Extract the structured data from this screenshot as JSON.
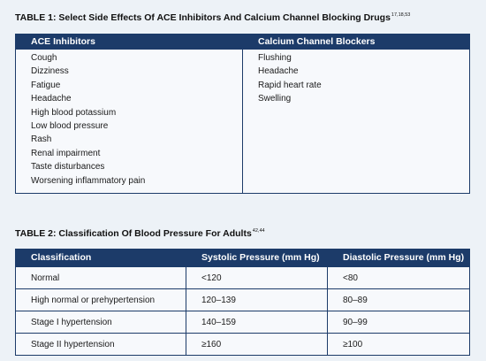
{
  "table1": {
    "title": "TABLE 1: Select Side Effects Of ACE Inhibitors And Calcium Channel Blocking Drugs",
    "superscript": "17,18,53",
    "headers": [
      "ACE Inhibitors",
      "Calcium Channel Blockers"
    ],
    "columns": [
      [
        "Cough",
        "Dizziness",
        "Fatigue",
        "Headache",
        "High blood potassium",
        "Low blood pressure",
        "Rash",
        "Renal impairment",
        "Taste disturbances",
        "Worsening inflammatory pain"
      ],
      [
        "Flushing",
        "Headache",
        "Rapid heart rate",
        "Swelling"
      ]
    ]
  },
  "table2": {
    "title": "TABLE 2: Classification Of Blood Pressure For Adults",
    "superscript": "42,44",
    "headers": [
      "Classification",
      "Systolic Pressure (mm Hg)",
      "Diastolic Pressure (mm Hg)"
    ],
    "rows": [
      [
        "Normal",
        "<120",
        "<80"
      ],
      [
        "High normal or prehypertension",
        "120–139",
        "80–89"
      ],
      [
        "Stage I hypertension",
        "140–159",
        "90–99"
      ],
      [
        "Stage II hypertension",
        "≥160",
        "≥100"
      ]
    ]
  }
}
